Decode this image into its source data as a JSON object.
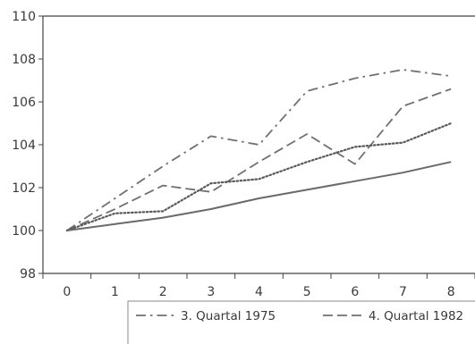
{
  "chart_data": {
    "type": "line",
    "x": [
      0,
      1,
      2,
      3,
      4,
      5,
      6,
      7,
      8
    ],
    "xlim": [
      -0.5,
      8.5
    ],
    "ylim": [
      98,
      110
    ],
    "y_ticks": [
      98,
      100,
      102,
      104,
      106,
      108,
      110
    ],
    "x_ticks": [
      0,
      1,
      2,
      3,
      4,
      5,
      6,
      7,
      8
    ],
    "grid": false,
    "legend_position": "bottom",
    "series": [
      {
        "name": "3. Quartal 1975",
        "style": "dash-dot",
        "color": "#707070",
        "values": [
          100.0,
          101.5,
          103.0,
          104.4,
          104.0,
          106.5,
          107.1,
          107.5,
          107.2
        ]
      },
      {
        "name": "4. Quartal 1982",
        "style": "dashed",
        "color": "#707070",
        "values": [
          100.0,
          101.0,
          102.1,
          101.8,
          103.2,
          104.5,
          103.1,
          105.8,
          106.6
        ]
      },
      {
        "name": "",
        "style": "dotted",
        "color": "#5a5a5a",
        "values": [
          100.0,
          100.8,
          100.9,
          102.2,
          102.4,
          103.2,
          103.9,
          104.1,
          105.0
        ]
      },
      {
        "name": "",
        "style": "solid",
        "color": "#6a6a6a",
        "values": [
          100.0,
          100.3,
          100.6,
          101.0,
          101.5,
          101.9,
          102.3,
          102.7,
          103.2
        ]
      }
    ]
  }
}
